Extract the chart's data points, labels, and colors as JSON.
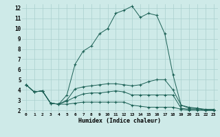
{
  "xlabel": "Humidex (Indice chaleur)",
  "bg_color": "#ceeae8",
  "grid_color": "#aacfcd",
  "line_color": "#1a5f54",
  "xlim": [
    -0.5,
    23.5
  ],
  "ylim": [
    1.8,
    12.4
  ],
  "xticks": [
    0,
    1,
    2,
    3,
    4,
    5,
    6,
    7,
    8,
    9,
    10,
    11,
    12,
    13,
    14,
    15,
    16,
    17,
    18,
    19,
    20,
    21,
    22,
    23
  ],
  "yticks": [
    2,
    3,
    4,
    5,
    6,
    7,
    8,
    9,
    10,
    11,
    12
  ],
  "line1_y": [
    4.5,
    3.8,
    3.9,
    2.7,
    2.6,
    3.5,
    6.5,
    7.8,
    8.3,
    9.5,
    10.0,
    11.5,
    11.8,
    12.2,
    11.1,
    11.5,
    11.3,
    9.5,
    5.5,
    2.5,
    2.2,
    2.2,
    2.0,
    2.0
  ],
  "line2_y": [
    4.5,
    3.8,
    3.9,
    2.7,
    2.6,
    3.0,
    4.1,
    4.3,
    4.4,
    4.5,
    4.6,
    4.6,
    4.5,
    4.4,
    4.5,
    4.8,
    5.0,
    5.0,
    4.0,
    2.5,
    2.3,
    2.2,
    2.1,
    2.1
  ],
  "line3_y": [
    4.5,
    3.8,
    3.9,
    2.7,
    2.6,
    2.9,
    3.3,
    3.6,
    3.7,
    3.7,
    3.8,
    3.9,
    3.8,
    3.5,
    3.5,
    3.5,
    3.5,
    3.5,
    3.5,
    2.2,
    2.1,
    2.1,
    2.0,
    2.0
  ],
  "line4_y": [
    4.5,
    3.8,
    3.9,
    2.7,
    2.6,
    2.6,
    2.7,
    2.8,
    2.8,
    2.8,
    2.8,
    2.8,
    2.8,
    2.5,
    2.4,
    2.3,
    2.3,
    2.3,
    2.3,
    2.1,
    2.0,
    2.0,
    2.0,
    2.0
  ]
}
